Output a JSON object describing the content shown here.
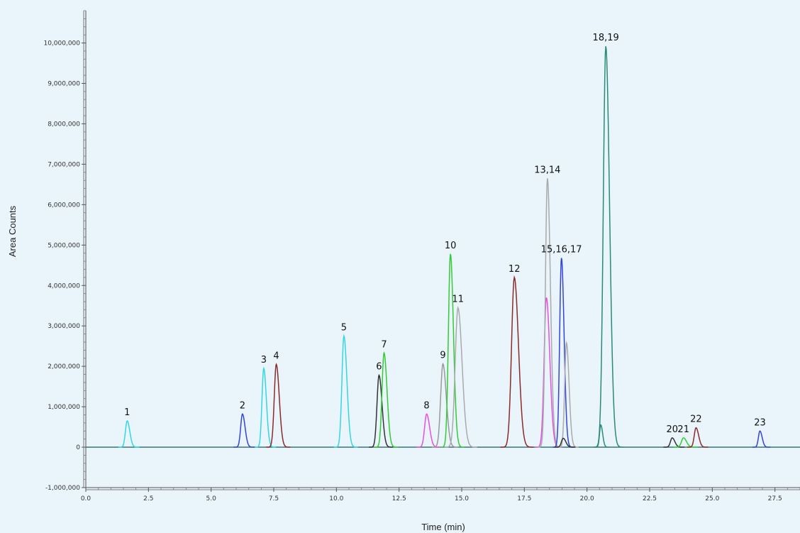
{
  "chart_data": {
    "type": "line",
    "title": "",
    "xlabel": "Time (min)",
    "ylabel": "Area Counts",
    "xlim": [
      0,
      28.5
    ],
    "ylim": [
      -1000000,
      10800000
    ],
    "x_ticks": [
      0,
      2.5,
      5,
      7.5,
      10,
      12.5,
      15,
      17.5,
      20,
      22.5,
      25,
      27.5
    ],
    "x_tick_labels": [
      "0.0",
      "2.5",
      "5.0",
      "7.5",
      "10.0",
      "12.5",
      "15.0",
      "17.5",
      "20.0",
      "22.5",
      "25.0",
      "27.5"
    ],
    "y_ticks": [
      -1000000,
      0,
      1000000,
      2000000,
      3000000,
      4000000,
      5000000,
      6000000,
      7000000,
      8000000,
      9000000,
      10000000
    ],
    "y_tick_labels": [
      "-1,000,000",
      "0",
      "1,000,000",
      "2,000,000",
      "3,000,000",
      "4,000,000",
      "5,000,000",
      "6,000,000",
      "7,000,000",
      "8,000,000",
      "9,000,000",
      "10,000,000"
    ],
    "grid": false,
    "legend": "none",
    "peaks": [
      {
        "label": "1",
        "rt": 1.65,
        "height": 650000,
        "width": 0.07,
        "color": "#33d6e6"
      },
      {
        "label": "2",
        "rt": 6.25,
        "height": 820000,
        "width": 0.07,
        "color": "#3344dd"
      },
      {
        "label": "3",
        "rt": 7.1,
        "height": 1950000,
        "width": 0.07,
        "color": "#33d6e6"
      },
      {
        "label": "4",
        "rt": 7.6,
        "height": 2050000,
        "width": 0.08,
        "color": "#8b2a2a"
      },
      {
        "label": "5",
        "rt": 10.3,
        "height": 2750000,
        "width": 0.08,
        "color": "#33d6e6"
      },
      {
        "label": "6",
        "rt": 11.7,
        "height": 1780000,
        "width": 0.08,
        "color": "#333333"
      },
      {
        "label": "7",
        "rt": 11.9,
        "height": 2330000,
        "width": 0.08,
        "color": "#33cc33"
      },
      {
        "label": "8",
        "rt": 13.6,
        "height": 820000,
        "width": 0.08,
        "color": "#e64fe6"
      },
      {
        "label": "9",
        "rt": 14.25,
        "height": 2060000,
        "width": 0.09,
        "color": "#999999"
      },
      {
        "label": "10",
        "rt": 14.55,
        "height": 4780000,
        "width": 0.08,
        "color": "#33cc33"
      },
      {
        "label": "11",
        "rt": 14.85,
        "height": 3450000,
        "width": 0.11,
        "color": "#aaaaaa"
      },
      {
        "label": "12",
        "rt": 17.1,
        "height": 4200000,
        "width": 0.11,
        "color": "#8b2a2a"
      },
      {
        "label": "",
        "rt": 18.38,
        "height": 3700000,
        "width": 0.09,
        "color": "#e64fe6"
      },
      {
        "label": "13,14",
        "rt": 18.42,
        "height": 6650000,
        "width": 0.08,
        "color": "#aaaaaa"
      },
      {
        "label": "15,16,17",
        "rt": 18.98,
        "height": 4680000,
        "width": 0.07,
        "color": "#3344dd"
      },
      {
        "label": "",
        "rt": 19.18,
        "height": 2580000,
        "width": 0.07,
        "color": "#aaaaaa"
      },
      {
        "label": "",
        "rt": 19.05,
        "height": 220000,
        "width": 0.07,
        "color": "#333333"
      },
      {
        "label": "",
        "rt": 20.55,
        "height": 550000,
        "width": 0.05,
        "color": "#2a8a7a"
      },
      {
        "label": "18,19",
        "rt": 20.75,
        "height": 9920000,
        "width": 0.1,
        "color": "#2a8a7a"
      },
      {
        "label": "20",
        "rt": 23.4,
        "height": 230000,
        "width": 0.07,
        "color": "#333333"
      },
      {
        "label": "21",
        "rt": 23.85,
        "height": 230000,
        "width": 0.08,
        "color": "#33cc33"
      },
      {
        "label": "22",
        "rt": 24.35,
        "height": 480000,
        "width": 0.07,
        "color": "#8b2a2a"
      },
      {
        "label": "23",
        "rt": 26.9,
        "height": 400000,
        "width": 0.06,
        "color": "#3344dd"
      }
    ]
  }
}
